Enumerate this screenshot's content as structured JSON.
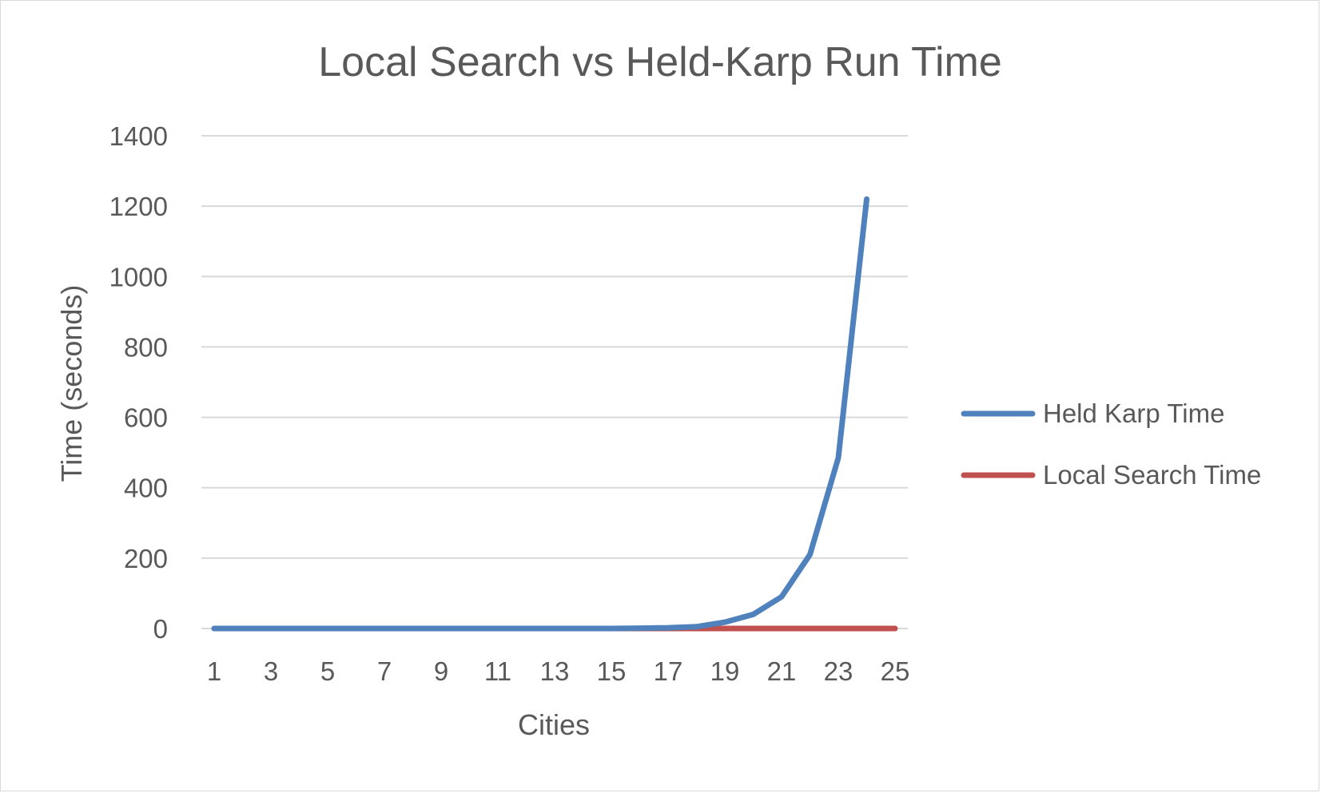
{
  "chart_data": {
    "type": "line",
    "title": "Local Search vs Held-Karp Run Time",
    "xlabel": "Cities",
    "ylabel": "Time (seconds)",
    "ylim": [
      0,
      1400
    ],
    "y_ticks": [
      "0",
      "200",
      "400",
      "600",
      "800",
      "1000",
      "1200",
      "1400"
    ],
    "x": [
      1,
      2,
      3,
      4,
      5,
      6,
      7,
      8,
      9,
      10,
      11,
      12,
      13,
      14,
      15,
      16,
      17,
      18,
      19,
      20,
      21,
      22,
      23,
      24,
      25
    ],
    "x_tick_labels": [
      "1",
      "3",
      "5",
      "7",
      "9",
      "11",
      "13",
      "15",
      "17",
      "19",
      "21",
      "23",
      "25"
    ],
    "grid": true,
    "legend_position": "right",
    "series": [
      {
        "name": "Held Karp Time",
        "color": "#4f81bd",
        "values": [
          0,
          0,
          0,
          0,
          0,
          0,
          0,
          0,
          0,
          0,
          0,
          0,
          0,
          0,
          0,
          1,
          2,
          5,
          18,
          40,
          90,
          210,
          485,
          1220,
          null
        ]
      },
      {
        "name": "Local Search Time",
        "color": "#c0504d",
        "values": [
          0,
          0,
          0,
          0,
          0,
          0,
          0,
          0,
          0,
          0,
          0,
          0,
          0,
          0,
          0,
          0,
          0,
          0,
          0,
          0,
          0,
          0,
          0,
          0,
          0
        ]
      }
    ]
  }
}
